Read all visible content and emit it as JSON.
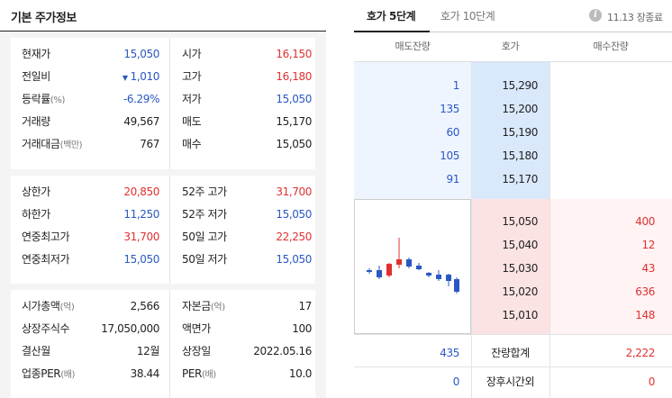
{
  "left": {
    "title": "기본 주가정보",
    "section1": [
      {
        "l1": "현재가",
        "l1s": "",
        "v1": "15,050",
        "v1c": "blue",
        "l2": "시가",
        "l2s": "",
        "v2": "16,150",
        "v2c": "red"
      },
      {
        "l1": "전일비",
        "l1s": "",
        "v1": "1,010",
        "v1c": "blue",
        "l2": "고가",
        "l2s": "",
        "v2": "16,180",
        "v2c": "red",
        "arrow": "▼"
      },
      {
        "l1": "등락률",
        "l1s": "(%)",
        "v1": "-6.29%",
        "v1c": "blue",
        "l2": "저가",
        "l2s": "",
        "v2": "15,050",
        "v2c": "blue"
      },
      {
        "l1": "거래량",
        "l1s": "",
        "v1": "49,567",
        "v1c": "dark",
        "l2": "매도",
        "l2s": "",
        "v2": "15,170",
        "v2c": "dark"
      },
      {
        "l1": "거래대금",
        "l1s": "(백만)",
        "v1": "767",
        "v1c": "dark",
        "l2": "매수",
        "l2s": "",
        "v2": "15,050",
        "v2c": "dark"
      }
    ],
    "section2": [
      {
        "l1": "상한가",
        "l1s": "",
        "v1": "20,850",
        "v1c": "red",
        "l2": "52주 고가",
        "l2s": "",
        "v2": "31,700",
        "v2c": "red"
      },
      {
        "l1": "하한가",
        "l1s": "",
        "v1": "11,250",
        "v1c": "blue",
        "l2": "52주 저가",
        "l2s": "",
        "v2": "15,050",
        "v2c": "blue"
      },
      {
        "l1": "연중최고가",
        "l1s": "",
        "v1": "31,700",
        "v1c": "red",
        "l2": "50일 고가",
        "l2s": "",
        "v2": "22,250",
        "v2c": "red"
      },
      {
        "l1": "연중최저가",
        "l1s": "",
        "v1": "15,050",
        "v1c": "blue",
        "l2": "50일 저가",
        "l2s": "",
        "v2": "15,050",
        "v2c": "blue"
      }
    ],
    "section3": [
      {
        "l1": "시가총액",
        "l1s": "(억)",
        "v1": "2,566",
        "v1c": "dark",
        "l2": "자본금",
        "l2s": "(억)",
        "v2": "17",
        "v2c": "dark"
      },
      {
        "l1": "상장주식수",
        "l1s": "",
        "v1": "17,050,000",
        "v1c": "dark",
        "l2": "액면가",
        "l2s": "",
        "v2": "100",
        "v2c": "dark"
      },
      {
        "l1": "결산월",
        "l1s": "",
        "v1": "12월",
        "v1c": "dark",
        "l2": "상장일",
        "l2s": "",
        "v2": "2022.05.16",
        "v2c": "dark"
      },
      {
        "l1": "업종PER",
        "l1s": "(배)",
        "v1": "38.44",
        "v1c": "dark",
        "l2": "PER",
        "l2s": "(배)",
        "v2": "10.0",
        "v2c": "dark"
      }
    ]
  },
  "right": {
    "tabs": [
      "호가 5단계",
      "호가 10단계"
    ],
    "info_icon": "info-icon",
    "info_text": "11.13 장종료",
    "headers": [
      "매도잔량",
      "호가",
      "매수잔량"
    ],
    "asks": [
      {
        "qty": "1",
        "price": "15,290"
      },
      {
        "qty": "135",
        "price": "15,200"
      },
      {
        "qty": "60",
        "price": "15,190"
      },
      {
        "qty": "105",
        "price": "15,180"
      },
      {
        "qty": "91",
        "price": "15,170"
      }
    ],
    "bids": [
      {
        "price": "15,050",
        "qty": "400"
      },
      {
        "price": "15,040",
        "qty": "12"
      },
      {
        "price": "15,030",
        "qty": "43"
      },
      {
        "price": "15,020",
        "qty": "636"
      },
      {
        "price": "15,010",
        "qty": "148"
      }
    ],
    "total_label": "잔량합계",
    "total_ask": "435",
    "total_bid": "2,222",
    "after_label": "장후시간외",
    "after_ask": "0",
    "after_bid": "0",
    "colors": {
      "up": "#e03131",
      "down": "#2a58c4"
    }
  }
}
